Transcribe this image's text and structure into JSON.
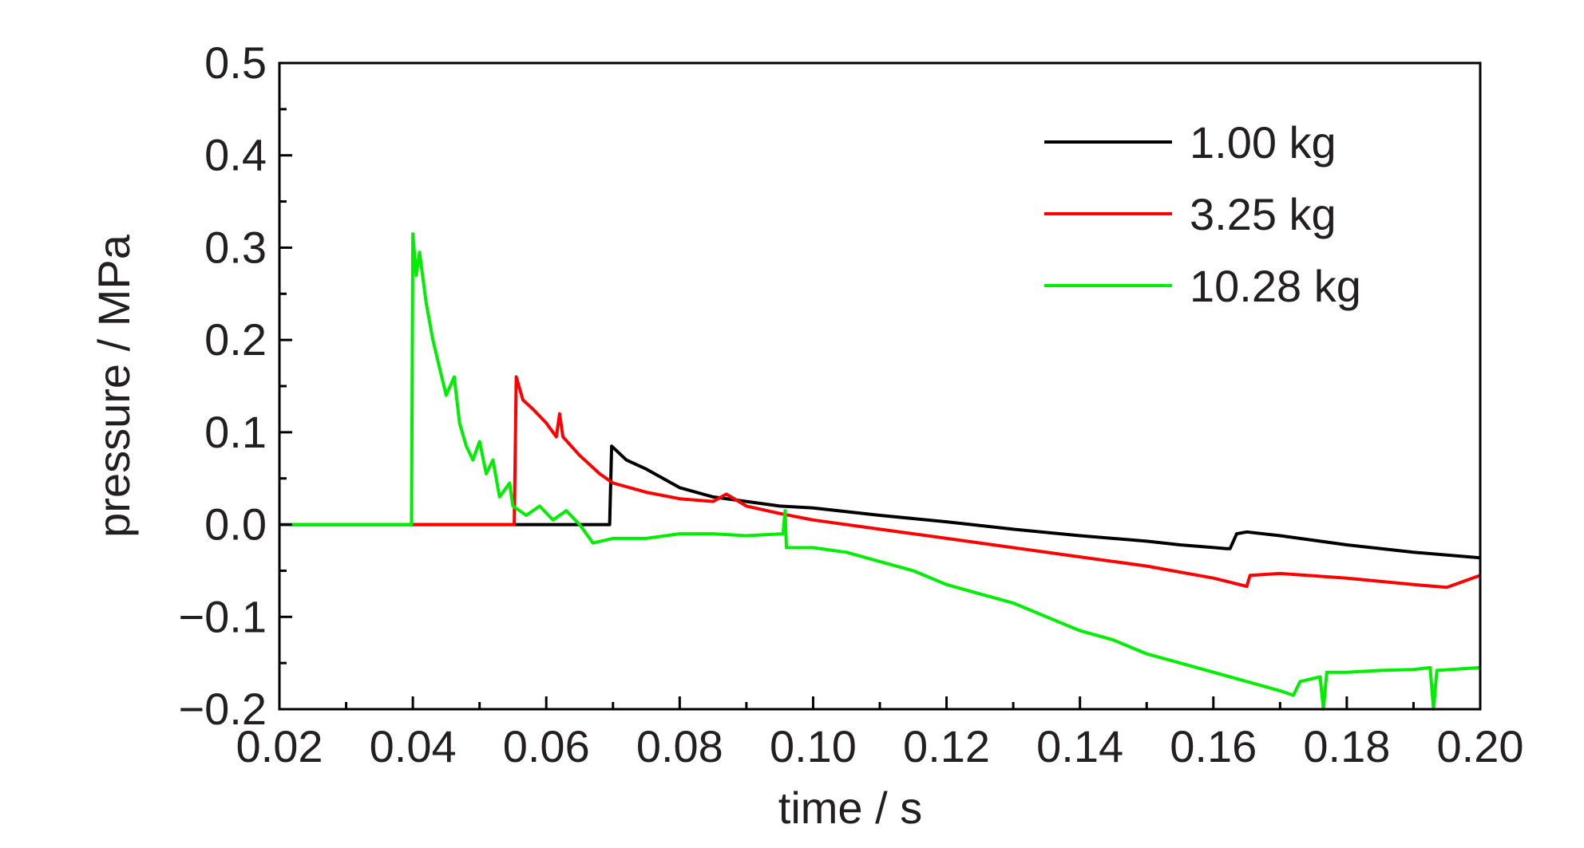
{
  "chart_data": {
    "type": "line",
    "xlabel": "time / s",
    "ylabel": "pressure / MPa",
    "xlim": [
      0.02,
      0.2
    ],
    "ylim": [
      -0.2,
      0.5
    ],
    "x_ticks": [
      "0.02",
      "0.04",
      "0.06",
      "0.08",
      "0.10",
      "0.12",
      "0.14",
      "0.16",
      "0.18",
      "0.20"
    ],
    "y_ticks": [
      "0.5",
      "0.4",
      "0.3",
      "0.2",
      "0.1",
      "0.0",
      "−0.1",
      "−0.2"
    ],
    "grid": false,
    "legend_position": "top-right",
    "series": [
      {
        "name": "1.00 kg",
        "color": "#000000",
        "points": [
          [
            0.02,
            0.0
          ],
          [
            0.069,
            0.0
          ],
          [
            0.0695,
            0.0
          ],
          [
            0.0698,
            0.085
          ],
          [
            0.072,
            0.07
          ],
          [
            0.075,
            0.06
          ],
          [
            0.08,
            0.04
          ],
          [
            0.085,
            0.03
          ],
          [
            0.09,
            0.025
          ],
          [
            0.095,
            0.02
          ],
          [
            0.1,
            0.018
          ],
          [
            0.11,
            0.01
          ],
          [
            0.12,
            0.003
          ],
          [
            0.13,
            -0.005
          ],
          [
            0.14,
            -0.012
          ],
          [
            0.15,
            -0.018
          ],
          [
            0.155,
            -0.022
          ],
          [
            0.162,
            -0.026
          ],
          [
            0.1625,
            -0.026
          ],
          [
            0.1635,
            -0.01
          ],
          [
            0.165,
            -0.008
          ],
          [
            0.17,
            -0.012
          ],
          [
            0.18,
            -0.022
          ],
          [
            0.19,
            -0.03
          ],
          [
            0.2,
            -0.036
          ]
        ]
      },
      {
        "name": "3.25 kg",
        "color": "#ff0000",
        "points": [
          [
            0.02,
            0.0
          ],
          [
            0.055,
            0.0
          ],
          [
            0.0552,
            0.0
          ],
          [
            0.0555,
            0.16
          ],
          [
            0.0565,
            0.135
          ],
          [
            0.058,
            0.125
          ],
          [
            0.06,
            0.11
          ],
          [
            0.0615,
            0.095
          ],
          [
            0.062,
            0.12
          ],
          [
            0.0625,
            0.095
          ],
          [
            0.065,
            0.075
          ],
          [
            0.068,
            0.055
          ],
          [
            0.07,
            0.045
          ],
          [
            0.075,
            0.035
          ],
          [
            0.08,
            0.028
          ],
          [
            0.085,
            0.025
          ],
          [
            0.087,
            0.033
          ],
          [
            0.09,
            0.02
          ],
          [
            0.095,
            0.012
          ],
          [
            0.1,
            0.005
          ],
          [
            0.11,
            -0.005
          ],
          [
            0.12,
            -0.015
          ],
          [
            0.13,
            -0.025
          ],
          [
            0.14,
            -0.035
          ],
          [
            0.15,
            -0.045
          ],
          [
            0.16,
            -0.058
          ],
          [
            0.165,
            -0.067
          ],
          [
            0.1655,
            -0.055
          ],
          [
            0.17,
            -0.053
          ],
          [
            0.18,
            -0.058
          ],
          [
            0.19,
            -0.065
          ],
          [
            0.195,
            -0.068
          ],
          [
            0.2,
            -0.055
          ]
        ]
      },
      {
        "name": "10.28 kg",
        "color": "#00ee00",
        "points": [
          [
            0.02,
            0.0
          ],
          [
            0.0398,
            0.0
          ],
          [
            0.04,
            0.315
          ],
          [
            0.0405,
            0.27
          ],
          [
            0.041,
            0.295
          ],
          [
            0.042,
            0.24
          ],
          [
            0.043,
            0.2
          ],
          [
            0.044,
            0.17
          ],
          [
            0.045,
            0.14
          ],
          [
            0.0462,
            0.16
          ],
          [
            0.047,
            0.11
          ],
          [
            0.048,
            0.085
          ],
          [
            0.049,
            0.07
          ],
          [
            0.05,
            0.09
          ],
          [
            0.051,
            0.055
          ],
          [
            0.052,
            0.07
          ],
          [
            0.053,
            0.03
          ],
          [
            0.0545,
            0.045
          ],
          [
            0.055,
            0.02
          ],
          [
            0.057,
            0.01
          ],
          [
            0.059,
            0.02
          ],
          [
            0.061,
            0.005
          ],
          [
            0.063,
            0.015
          ],
          [
            0.065,
            0.0
          ],
          [
            0.067,
            -0.02
          ],
          [
            0.07,
            -0.015
          ],
          [
            0.075,
            -0.015
          ],
          [
            0.08,
            -0.01
          ],
          [
            0.085,
            -0.01
          ],
          [
            0.09,
            -0.012
          ],
          [
            0.0955,
            -0.01
          ],
          [
            0.0958,
            0.015
          ],
          [
            0.096,
            -0.025
          ],
          [
            0.1,
            -0.025
          ],
          [
            0.105,
            -0.03
          ],
          [
            0.11,
            -0.04
          ],
          [
            0.115,
            -0.05
          ],
          [
            0.12,
            -0.065
          ],
          [
            0.125,
            -0.075
          ],
          [
            0.13,
            -0.085
          ],
          [
            0.135,
            -0.1
          ],
          [
            0.14,
            -0.115
          ],
          [
            0.145,
            -0.125
          ],
          [
            0.15,
            -0.14
          ],
          [
            0.155,
            -0.15
          ],
          [
            0.16,
            -0.16
          ],
          [
            0.165,
            -0.17
          ],
          [
            0.17,
            -0.18
          ],
          [
            0.172,
            -0.185
          ],
          [
            0.173,
            -0.17
          ],
          [
            0.176,
            -0.165
          ],
          [
            0.1765,
            -0.2
          ],
          [
            0.177,
            -0.16
          ],
          [
            0.18,
            -0.16
          ],
          [
            0.185,
            -0.158
          ],
          [
            0.19,
            -0.157
          ],
          [
            0.1925,
            -0.155
          ],
          [
            0.193,
            -0.2
          ],
          [
            0.1935,
            -0.158
          ],
          [
            0.2,
            -0.155
          ]
        ]
      }
    ]
  }
}
